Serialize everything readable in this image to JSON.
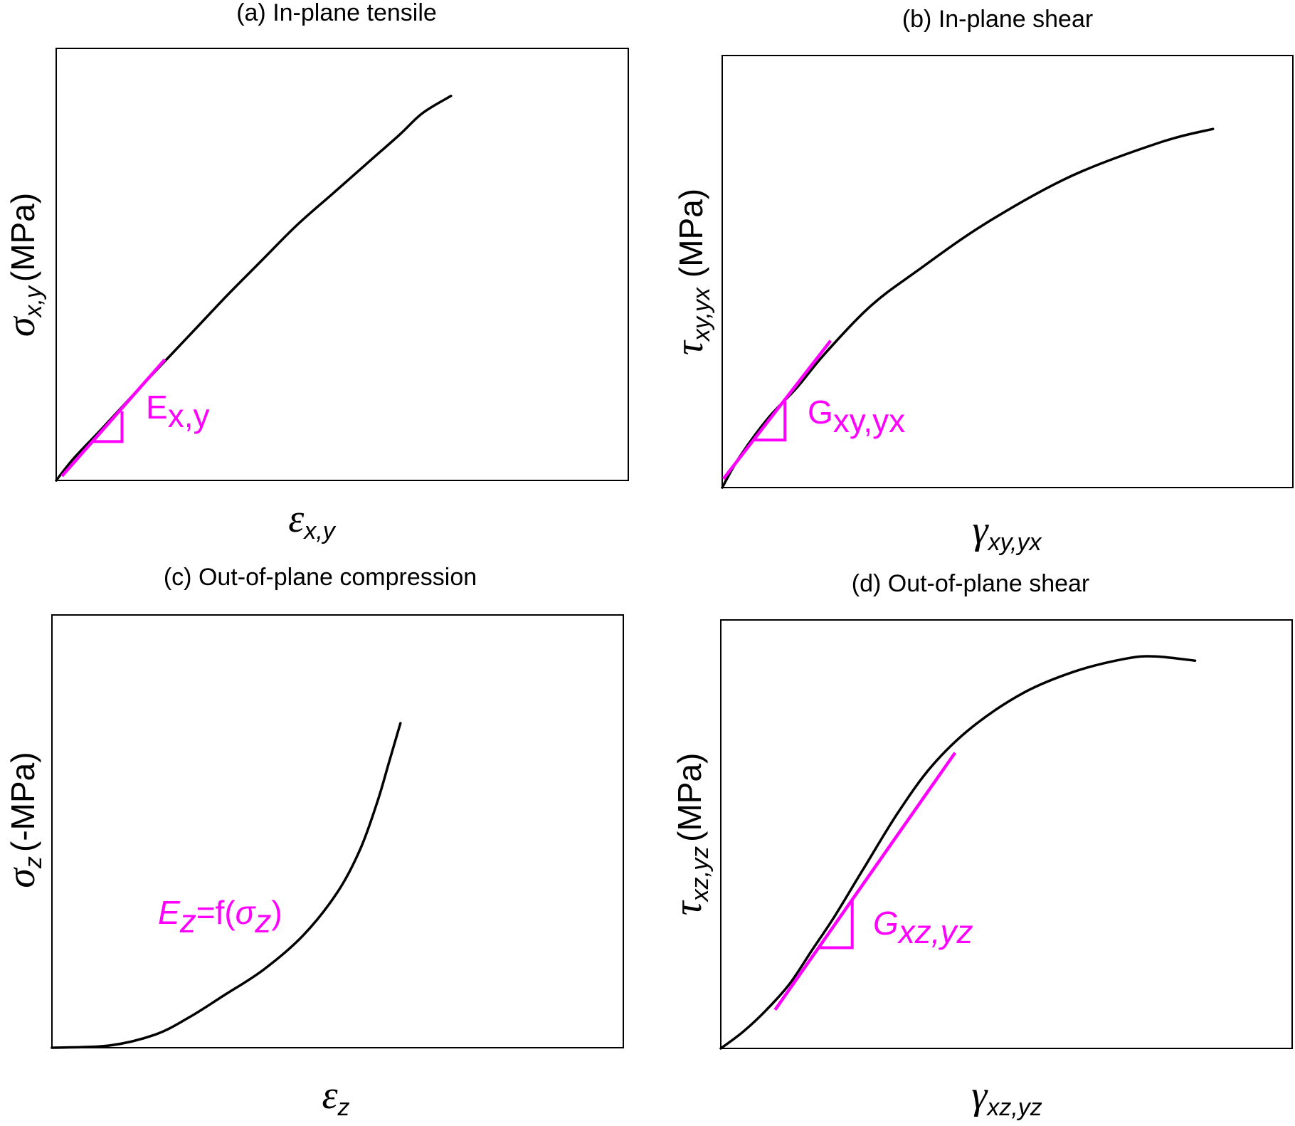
{
  "colors": {
    "curve": "#000000",
    "annotation": "#ff00ff",
    "frame": "#000000"
  },
  "chart_data": [
    {
      "id": "a",
      "type": "line",
      "title": "(a) In-plane tensile",
      "xlabel": {
        "symbol": "ε",
        "sub": "x,y"
      },
      "ylabel": {
        "symbol": "σ",
        "sub": "x,y",
        "unit": "(MPa)"
      },
      "annotation": {
        "main": "E",
        "sub": "x,y"
      },
      "grid": false,
      "ticks": false,
      "xlim": [
        0,
        1
      ],
      "ylim": [
        0,
        1
      ],
      "series": [
        {
          "x": [
            0,
            0.03,
            0.08,
            0.15,
            0.2,
            0.25,
            0.3,
            0.36,
            0.42,
            0.48,
            0.54,
            0.6,
            0.64,
            0.69
          ],
          "y": [
            0,
            0.05,
            0.12,
            0.22,
            0.29,
            0.36,
            0.43,
            0.51,
            0.59,
            0.66,
            0.73,
            0.8,
            0.85,
            0.89
          ]
        }
      ],
      "tangent": {
        "x": [
          0.01,
          0.19
        ],
        "y": [
          0.01,
          0.28
        ]
      },
      "triangle": {
        "x": [
          0.065,
          0.115
        ],
        "y": [
          0.09,
          0.16
        ]
      }
    },
    {
      "id": "b",
      "type": "line",
      "title": "(b) In-plane shear",
      "xlabel": {
        "symbol": "γ",
        "sub": "xy,yx"
      },
      "ylabel": {
        "symbol": "τ",
        "sub": "xy,yx",
        "unit": "(MPa)"
      },
      "annotation": {
        "main": "G",
        "sub": "xy,yx"
      },
      "grid": false,
      "ticks": false,
      "xlim": [
        0,
        1
      ],
      "ylim": [
        0,
        1
      ],
      "series": [
        {
          "x": [
            0,
            0.03,
            0.08,
            0.13,
            0.18,
            0.26,
            0.34,
            0.46,
            0.61,
            0.77,
            0.86
          ],
          "y": [
            0,
            0.07,
            0.16,
            0.23,
            0.31,
            0.42,
            0.5,
            0.61,
            0.72,
            0.8,
            0.83
          ]
        }
      ],
      "tangent": {
        "x": [
          0.002,
          0.19
        ],
        "y": [
          0.02,
          0.34
        ]
      },
      "triangle": {
        "x": [
          0.055,
          0.11
        ],
        "y": [
          0.11,
          0.2
        ]
      }
    },
    {
      "id": "c",
      "type": "line",
      "title": "(c) Out-of-plane compression",
      "xlabel": {
        "symbol": "ε",
        "sub": "z"
      },
      "ylabel": {
        "symbol": "σ",
        "sub": "z",
        "unit": "(-MPa)"
      },
      "annotation": {
        "main": "E",
        "sub": "z",
        "rest": "=f(",
        "arg": "σ",
        "argsub": "z",
        "close": ")"
      },
      "grid": false,
      "ticks": false,
      "xlim": [
        0,
        1
      ],
      "ylim": [
        0,
        1
      ],
      "series": [
        {
          "x": [
            0,
            0.1,
            0.18,
            0.24,
            0.3,
            0.37,
            0.44,
            0.5,
            0.54,
            0.57,
            0.59,
            0.61
          ],
          "y": [
            0,
            0.005,
            0.03,
            0.07,
            0.12,
            0.18,
            0.26,
            0.36,
            0.46,
            0.57,
            0.66,
            0.75
          ]
        }
      ]
    },
    {
      "id": "d",
      "type": "line",
      "title": "(d) Out-of-plane shear",
      "xlabel": {
        "symbol": "γ",
        "sub": "xz,yz"
      },
      "ylabel": {
        "symbol": "τ",
        "sub": "xz,yz",
        "unit": "(MPa)"
      },
      "annotation": {
        "main": "G",
        "sub": "xz,yz"
      },
      "grid": false,
      "ticks": false,
      "xlim": [
        0,
        1
      ],
      "ylim": [
        0,
        1
      ],
      "series": [
        {
          "x": [
            0,
            0.04,
            0.08,
            0.12,
            0.16,
            0.2,
            0.25,
            0.31,
            0.37,
            0.44,
            0.53,
            0.62,
            0.71,
            0.76,
            0.83
          ],
          "y": [
            0,
            0.04,
            0.09,
            0.15,
            0.23,
            0.31,
            0.42,
            0.55,
            0.66,
            0.75,
            0.83,
            0.88,
            0.91,
            0.915,
            0.905
          ]
        }
      ],
      "tangent": {
        "x": [
          0.095,
          0.41
        ],
        "y": [
          0.09,
          0.69
        ]
      },
      "triangle": {
        "x": [
          0.17,
          0.23
        ],
        "y": [
          0.235,
          0.345
        ]
      }
    }
  ]
}
